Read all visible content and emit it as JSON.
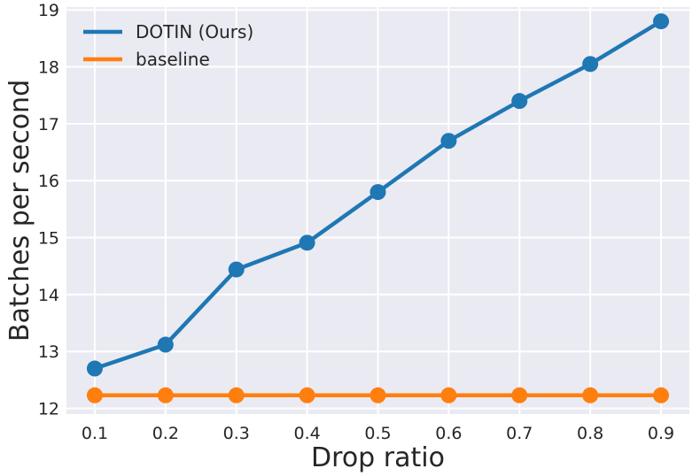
{
  "chart_data": {
    "type": "line",
    "title": "",
    "xlabel": "Drop ratio",
    "ylabel": "Batches per second",
    "x": [
      0.1,
      0.2,
      0.3,
      0.4,
      0.5,
      0.6,
      0.7,
      0.8,
      0.9
    ],
    "x_tick_labels": [
      "0.1",
      "0.2",
      "0.3",
      "0.4",
      "0.5",
      "0.6",
      "0.7",
      "0.8",
      "0.9"
    ],
    "y_ticks": [
      12,
      13,
      14,
      15,
      16,
      17,
      18,
      19
    ],
    "y_tick_labels": [
      "12",
      "13",
      "14",
      "15",
      "16",
      "17",
      "18",
      "19"
    ],
    "xlim": [
      0.06,
      0.94
    ],
    "ylim": [
      11.9,
      19.05
    ],
    "grid": true,
    "legend_position": "top-left",
    "series": [
      {
        "name": "DOTIN (Ours)",
        "color": "#1f77b4",
        "values": [
          12.7,
          13.12,
          14.44,
          14.91,
          15.8,
          16.7,
          17.4,
          18.05,
          18.8
        ]
      },
      {
        "name": "baseline",
        "color": "#ff7f0e",
        "values": [
          12.23,
          12.23,
          12.23,
          12.23,
          12.23,
          12.23,
          12.23,
          12.23,
          12.23
        ]
      }
    ],
    "background_color": "#eaeaf2",
    "grid_color": "#ffffff"
  }
}
